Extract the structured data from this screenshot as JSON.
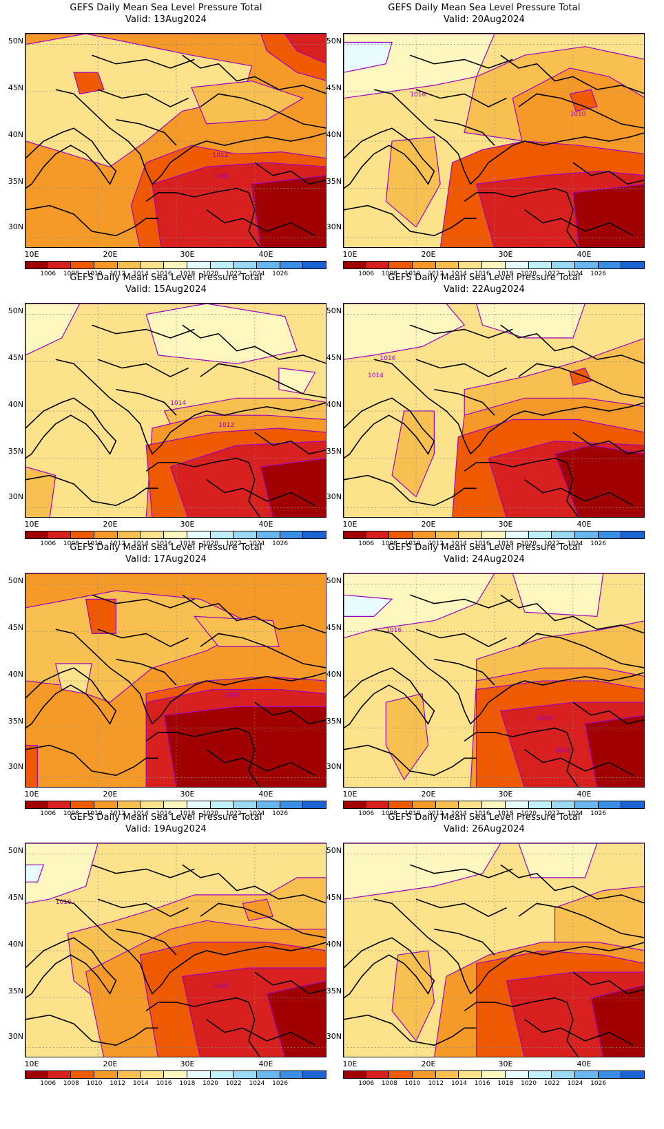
{
  "panels": [
    {
      "title": "GEFS Daily Mean Sea Level Pressure Total",
      "valid": "Valid: 13Aug2024",
      "levels": [
        [
          "1012",
          0.62,
          0.55
        ],
        [
          "1008",
          0.62,
          0.65
        ]
      ]
    },
    {
      "title": "GEFS Daily Mean Sea Level Pressure Total",
      "valid": "Valid: 20Aug2024",
      "levels": [
        [
          "1016",
          0.22,
          0.27
        ],
        [
          "1010",
          0.75,
          0.36
        ]
      ]
    },
    {
      "title": "GEFS Daily Mean Sea Level Pressure Total",
      "valid": "Valid: 15Aug2024",
      "levels": [
        [
          "1014",
          0.48,
          0.45
        ],
        [
          "1012",
          0.64,
          0.55
        ]
      ]
    },
    {
      "title": "GEFS Daily Mean Sea Level Pressure Total",
      "valid": "Valid: 22Aug2024",
      "levels": [
        [
          "1016",
          0.12,
          0.24
        ],
        [
          "1014",
          0.08,
          0.32
        ]
      ]
    },
    {
      "title": "GEFS Daily Mean Sea Level Pressure Total",
      "valid": "Valid: 17Aug2024",
      "levels": [
        [
          "1010",
          0.66,
          0.55
        ]
      ]
    },
    {
      "title": "GEFS Daily Mean Sea Level Pressure Total",
      "valid": "Valid: 24Aug2024",
      "levels": [
        [
          "1016",
          0.14,
          0.25
        ],
        [
          "1008",
          0.64,
          0.66
        ],
        [
          "1008",
          0.7,
          0.81
        ]
      ]
    },
    {
      "title": "GEFS Daily Mean Sea Level Pressure Total",
      "valid": "Valid: 19Aug2024",
      "levels": [
        [
          "1016",
          0.1,
          0.26
        ],
        [
          "1008",
          0.62,
          0.65
        ]
      ]
    },
    {
      "title": "GEFS Daily Mean Sea Level Pressure Total",
      "valid": "Valid: 26Aug2024",
      "levels": []
    }
  ],
  "lat_labels": [
    "50N",
    "45N",
    "40N",
    "35N",
    "30N"
  ],
  "lon_labels": [
    "10E",
    "20E",
    "30E",
    "40E"
  ],
  "colorbar": {
    "colors": [
      "#a00000",
      "#d8201f",
      "#ef5a00",
      "#f59a28",
      "#f8c050",
      "#fde28c",
      "#fff7c0",
      "#e8fbff",
      "#c0f0fa",
      "#9ad8f4",
      "#6ab6ee",
      "#3a8ee4",
      "#1c64d4"
    ],
    "labels": [
      "1006",
      "1008",
      "1010",
      "1012",
      "1014",
      "1016",
      "1018",
      "1020",
      "1022",
      "1024",
      "1026"
    ]
  },
  "contour_color": "#a000c0",
  "land_outline_color": "#000000"
}
